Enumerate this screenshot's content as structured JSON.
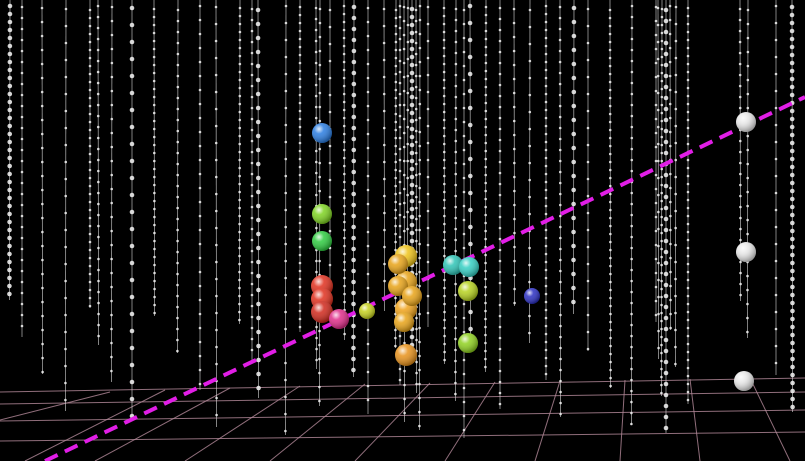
{
  "scene": {
    "background": "#000000",
    "string_color": "#d8d8d8",
    "floor_grid_color": "#b48a9a",
    "track_color": "#e11ee6",
    "track_style": "dashed"
  },
  "event_view": {
    "hit_doms": [
      {
        "color": "#2a7de1",
        "size": "medium"
      },
      {
        "color": "#7ed321",
        "size": "medium"
      },
      {
        "color": "#2ecc40",
        "size": "medium"
      },
      {
        "color": "#e0301e",
        "size": "large"
      },
      {
        "color": "#e0301e",
        "size": "large"
      },
      {
        "color": "#d0281c",
        "size": "large"
      },
      {
        "color": "#e02d8a",
        "size": "medium"
      },
      {
        "color": "#c6d21d",
        "size": "small"
      },
      {
        "color": "#f0c419",
        "size": "large"
      },
      {
        "color": "#e8a317",
        "size": "large"
      },
      {
        "color": "#f0a31b",
        "size": "large"
      },
      {
        "color": "#e8921b",
        "size": "large"
      },
      {
        "color": "#2ec4b6",
        "size": "medium"
      },
      {
        "color": "#35d0c4",
        "size": "medium"
      },
      {
        "color": "#b7d21f",
        "size": "medium"
      },
      {
        "color": "#8fd11f",
        "size": "medium"
      },
      {
        "color": "#2b2fc2",
        "size": "small"
      },
      {
        "color": "#e8e8e8",
        "size": "medium"
      },
      {
        "color": "#e8e8e8",
        "size": "medium"
      },
      {
        "color": "#e8e8e8",
        "size": "medium"
      }
    ]
  }
}
